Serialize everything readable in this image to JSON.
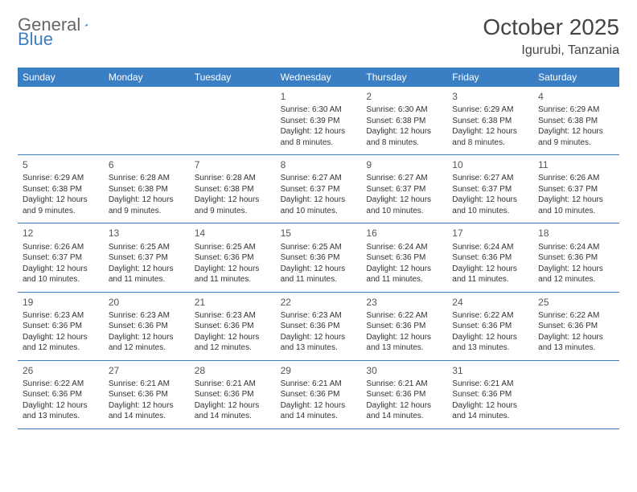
{
  "logo": {
    "text1": "General",
    "text2": "Blue"
  },
  "title": "October 2025",
  "location": "Igurubi, Tanzania",
  "colors": {
    "header_bg": "#3a7fc4",
    "header_text": "#ffffff",
    "border": "#3a7fc4",
    "text": "#333333",
    "title_color": "#444444"
  },
  "weekdays": [
    "Sunday",
    "Monday",
    "Tuesday",
    "Wednesday",
    "Thursday",
    "Friday",
    "Saturday"
  ],
  "weeks": [
    [
      null,
      null,
      null,
      {
        "n": "1",
        "sr": "6:30 AM",
        "ss": "6:39 PM",
        "dl": "12 hours and 8 minutes."
      },
      {
        "n": "2",
        "sr": "6:30 AM",
        "ss": "6:38 PM",
        "dl": "12 hours and 8 minutes."
      },
      {
        "n": "3",
        "sr": "6:29 AM",
        "ss": "6:38 PM",
        "dl": "12 hours and 8 minutes."
      },
      {
        "n": "4",
        "sr": "6:29 AM",
        "ss": "6:38 PM",
        "dl": "12 hours and 9 minutes."
      }
    ],
    [
      {
        "n": "5",
        "sr": "6:29 AM",
        "ss": "6:38 PM",
        "dl": "12 hours and 9 minutes."
      },
      {
        "n": "6",
        "sr": "6:28 AM",
        "ss": "6:38 PM",
        "dl": "12 hours and 9 minutes."
      },
      {
        "n": "7",
        "sr": "6:28 AM",
        "ss": "6:38 PM",
        "dl": "12 hours and 9 minutes."
      },
      {
        "n": "8",
        "sr": "6:27 AM",
        "ss": "6:37 PM",
        "dl": "12 hours and 10 minutes."
      },
      {
        "n": "9",
        "sr": "6:27 AM",
        "ss": "6:37 PM",
        "dl": "12 hours and 10 minutes."
      },
      {
        "n": "10",
        "sr": "6:27 AM",
        "ss": "6:37 PM",
        "dl": "12 hours and 10 minutes."
      },
      {
        "n": "11",
        "sr": "6:26 AM",
        "ss": "6:37 PM",
        "dl": "12 hours and 10 minutes."
      }
    ],
    [
      {
        "n": "12",
        "sr": "6:26 AM",
        "ss": "6:37 PM",
        "dl": "12 hours and 10 minutes."
      },
      {
        "n": "13",
        "sr": "6:25 AM",
        "ss": "6:37 PM",
        "dl": "12 hours and 11 minutes."
      },
      {
        "n": "14",
        "sr": "6:25 AM",
        "ss": "6:36 PM",
        "dl": "12 hours and 11 minutes."
      },
      {
        "n": "15",
        "sr": "6:25 AM",
        "ss": "6:36 PM",
        "dl": "12 hours and 11 minutes."
      },
      {
        "n": "16",
        "sr": "6:24 AM",
        "ss": "6:36 PM",
        "dl": "12 hours and 11 minutes."
      },
      {
        "n": "17",
        "sr": "6:24 AM",
        "ss": "6:36 PM",
        "dl": "12 hours and 11 minutes."
      },
      {
        "n": "18",
        "sr": "6:24 AM",
        "ss": "6:36 PM",
        "dl": "12 hours and 12 minutes."
      }
    ],
    [
      {
        "n": "19",
        "sr": "6:23 AM",
        "ss": "6:36 PM",
        "dl": "12 hours and 12 minutes."
      },
      {
        "n": "20",
        "sr": "6:23 AM",
        "ss": "6:36 PM",
        "dl": "12 hours and 12 minutes."
      },
      {
        "n": "21",
        "sr": "6:23 AM",
        "ss": "6:36 PM",
        "dl": "12 hours and 12 minutes."
      },
      {
        "n": "22",
        "sr": "6:23 AM",
        "ss": "6:36 PM",
        "dl": "12 hours and 13 minutes."
      },
      {
        "n": "23",
        "sr": "6:22 AM",
        "ss": "6:36 PM",
        "dl": "12 hours and 13 minutes."
      },
      {
        "n": "24",
        "sr": "6:22 AM",
        "ss": "6:36 PM",
        "dl": "12 hours and 13 minutes."
      },
      {
        "n": "25",
        "sr": "6:22 AM",
        "ss": "6:36 PM",
        "dl": "12 hours and 13 minutes."
      }
    ],
    [
      {
        "n": "26",
        "sr": "6:22 AM",
        "ss": "6:36 PM",
        "dl": "12 hours and 13 minutes."
      },
      {
        "n": "27",
        "sr": "6:21 AM",
        "ss": "6:36 PM",
        "dl": "12 hours and 14 minutes."
      },
      {
        "n": "28",
        "sr": "6:21 AM",
        "ss": "6:36 PM",
        "dl": "12 hours and 14 minutes."
      },
      {
        "n": "29",
        "sr": "6:21 AM",
        "ss": "6:36 PM",
        "dl": "12 hours and 14 minutes."
      },
      {
        "n": "30",
        "sr": "6:21 AM",
        "ss": "6:36 PM",
        "dl": "12 hours and 14 minutes."
      },
      {
        "n": "31",
        "sr": "6:21 AM",
        "ss": "6:36 PM",
        "dl": "12 hours and 14 minutes."
      },
      null
    ]
  ],
  "labels": {
    "sunrise": "Sunrise:",
    "sunset": "Sunset:",
    "daylight": "Daylight:"
  }
}
